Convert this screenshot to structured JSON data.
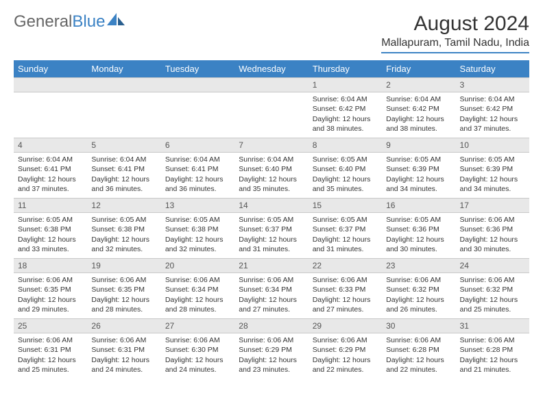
{
  "brand": {
    "name_a": "General",
    "name_b": "Blue"
  },
  "title": "August 2024",
  "location": "Mallapuram, Tamil Nadu, India",
  "colors": {
    "header_bg": "#3b82c4",
    "header_text": "#ffffff",
    "daynum_bg": "#e8e8e8",
    "border": "#c8c8c8",
    "text": "#333333",
    "logo_gray": "#666666"
  },
  "day_headers": [
    "Sunday",
    "Monday",
    "Tuesday",
    "Wednesday",
    "Thursday",
    "Friday",
    "Saturday"
  ],
  "weeks": [
    [
      {
        "day": "",
        "sunrise": "",
        "sunset": "",
        "daylight": ""
      },
      {
        "day": "",
        "sunrise": "",
        "sunset": "",
        "daylight": ""
      },
      {
        "day": "",
        "sunrise": "",
        "sunset": "",
        "daylight": ""
      },
      {
        "day": "",
        "sunrise": "",
        "sunset": "",
        "daylight": ""
      },
      {
        "day": "1",
        "sunrise": "Sunrise: 6:04 AM",
        "sunset": "Sunset: 6:42 PM",
        "daylight": "Daylight: 12 hours and 38 minutes."
      },
      {
        "day": "2",
        "sunrise": "Sunrise: 6:04 AM",
        "sunset": "Sunset: 6:42 PM",
        "daylight": "Daylight: 12 hours and 38 minutes."
      },
      {
        "day": "3",
        "sunrise": "Sunrise: 6:04 AM",
        "sunset": "Sunset: 6:42 PM",
        "daylight": "Daylight: 12 hours and 37 minutes."
      }
    ],
    [
      {
        "day": "4",
        "sunrise": "Sunrise: 6:04 AM",
        "sunset": "Sunset: 6:41 PM",
        "daylight": "Daylight: 12 hours and 37 minutes."
      },
      {
        "day": "5",
        "sunrise": "Sunrise: 6:04 AM",
        "sunset": "Sunset: 6:41 PM",
        "daylight": "Daylight: 12 hours and 36 minutes."
      },
      {
        "day": "6",
        "sunrise": "Sunrise: 6:04 AM",
        "sunset": "Sunset: 6:41 PM",
        "daylight": "Daylight: 12 hours and 36 minutes."
      },
      {
        "day": "7",
        "sunrise": "Sunrise: 6:04 AM",
        "sunset": "Sunset: 6:40 PM",
        "daylight": "Daylight: 12 hours and 35 minutes."
      },
      {
        "day": "8",
        "sunrise": "Sunrise: 6:05 AM",
        "sunset": "Sunset: 6:40 PM",
        "daylight": "Daylight: 12 hours and 35 minutes."
      },
      {
        "day": "9",
        "sunrise": "Sunrise: 6:05 AM",
        "sunset": "Sunset: 6:39 PM",
        "daylight": "Daylight: 12 hours and 34 minutes."
      },
      {
        "day": "10",
        "sunrise": "Sunrise: 6:05 AM",
        "sunset": "Sunset: 6:39 PM",
        "daylight": "Daylight: 12 hours and 34 minutes."
      }
    ],
    [
      {
        "day": "11",
        "sunrise": "Sunrise: 6:05 AM",
        "sunset": "Sunset: 6:38 PM",
        "daylight": "Daylight: 12 hours and 33 minutes."
      },
      {
        "day": "12",
        "sunrise": "Sunrise: 6:05 AM",
        "sunset": "Sunset: 6:38 PM",
        "daylight": "Daylight: 12 hours and 32 minutes."
      },
      {
        "day": "13",
        "sunrise": "Sunrise: 6:05 AM",
        "sunset": "Sunset: 6:38 PM",
        "daylight": "Daylight: 12 hours and 32 minutes."
      },
      {
        "day": "14",
        "sunrise": "Sunrise: 6:05 AM",
        "sunset": "Sunset: 6:37 PM",
        "daylight": "Daylight: 12 hours and 31 minutes."
      },
      {
        "day": "15",
        "sunrise": "Sunrise: 6:05 AM",
        "sunset": "Sunset: 6:37 PM",
        "daylight": "Daylight: 12 hours and 31 minutes."
      },
      {
        "day": "16",
        "sunrise": "Sunrise: 6:05 AM",
        "sunset": "Sunset: 6:36 PM",
        "daylight": "Daylight: 12 hours and 30 minutes."
      },
      {
        "day": "17",
        "sunrise": "Sunrise: 6:06 AM",
        "sunset": "Sunset: 6:36 PM",
        "daylight": "Daylight: 12 hours and 30 minutes."
      }
    ],
    [
      {
        "day": "18",
        "sunrise": "Sunrise: 6:06 AM",
        "sunset": "Sunset: 6:35 PM",
        "daylight": "Daylight: 12 hours and 29 minutes."
      },
      {
        "day": "19",
        "sunrise": "Sunrise: 6:06 AM",
        "sunset": "Sunset: 6:35 PM",
        "daylight": "Daylight: 12 hours and 28 minutes."
      },
      {
        "day": "20",
        "sunrise": "Sunrise: 6:06 AM",
        "sunset": "Sunset: 6:34 PM",
        "daylight": "Daylight: 12 hours and 28 minutes."
      },
      {
        "day": "21",
        "sunrise": "Sunrise: 6:06 AM",
        "sunset": "Sunset: 6:34 PM",
        "daylight": "Daylight: 12 hours and 27 minutes."
      },
      {
        "day": "22",
        "sunrise": "Sunrise: 6:06 AM",
        "sunset": "Sunset: 6:33 PM",
        "daylight": "Daylight: 12 hours and 27 minutes."
      },
      {
        "day": "23",
        "sunrise": "Sunrise: 6:06 AM",
        "sunset": "Sunset: 6:32 PM",
        "daylight": "Daylight: 12 hours and 26 minutes."
      },
      {
        "day": "24",
        "sunrise": "Sunrise: 6:06 AM",
        "sunset": "Sunset: 6:32 PM",
        "daylight": "Daylight: 12 hours and 25 minutes."
      }
    ],
    [
      {
        "day": "25",
        "sunrise": "Sunrise: 6:06 AM",
        "sunset": "Sunset: 6:31 PM",
        "daylight": "Daylight: 12 hours and 25 minutes."
      },
      {
        "day": "26",
        "sunrise": "Sunrise: 6:06 AM",
        "sunset": "Sunset: 6:31 PM",
        "daylight": "Daylight: 12 hours and 24 minutes."
      },
      {
        "day": "27",
        "sunrise": "Sunrise: 6:06 AM",
        "sunset": "Sunset: 6:30 PM",
        "daylight": "Daylight: 12 hours and 24 minutes."
      },
      {
        "day": "28",
        "sunrise": "Sunrise: 6:06 AM",
        "sunset": "Sunset: 6:29 PM",
        "daylight": "Daylight: 12 hours and 23 minutes."
      },
      {
        "day": "29",
        "sunrise": "Sunrise: 6:06 AM",
        "sunset": "Sunset: 6:29 PM",
        "daylight": "Daylight: 12 hours and 22 minutes."
      },
      {
        "day": "30",
        "sunrise": "Sunrise: 6:06 AM",
        "sunset": "Sunset: 6:28 PM",
        "daylight": "Daylight: 12 hours and 22 minutes."
      },
      {
        "day": "31",
        "sunrise": "Sunrise: 6:06 AM",
        "sunset": "Sunset: 6:28 PM",
        "daylight": "Daylight: 12 hours and 21 minutes."
      }
    ]
  ]
}
